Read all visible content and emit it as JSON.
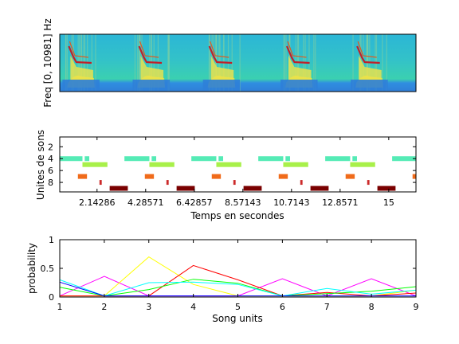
{
  "spectrogram": {
    "ylabel": "Freq [0, 10981] Hz",
    "song_bouts": [
      {
        "start": 0.2,
        "end": 1.25
      },
      {
        "start": 2.6,
        "end": 3.65
      },
      {
        "start": 5.0,
        "end": 6.05
      },
      {
        "start": 7.65,
        "end": 8.7
      },
      {
        "start": 10.05,
        "end": 11.1
      }
    ],
    "colors": {
      "background": "#2fb8d3",
      "low_band": "#2f7fd8",
      "energy": "#e8e43a",
      "harmonic": "#c0202a",
      "noise": "#7fd0a0"
    }
  },
  "units_plot": {
    "ylabel": "Unites de sons",
    "xlabel": "Temps en secondes",
    "xticks": [
      "2.14286",
      "4.28571",
      "6.42857",
      "8.57143",
      "10.7143",
      "12.8571",
      "15"
    ],
    "yticks": [
      "2",
      "4",
      "6",
      "8"
    ],
    "colors": {
      "unit4": "#55ebb6",
      "unit5": "#a8f04a",
      "unit7": "#f06b1a",
      "unit8": "#cc2a2a",
      "unit9": "#7a0000"
    }
  },
  "chart_data": {
    "type": "line",
    "xlabel": "Song units",
    "ylabel": "probability",
    "x": [
      1,
      2,
      3,
      4,
      5,
      6,
      7,
      8,
      9
    ],
    "xlim": [
      1,
      9
    ],
    "ylim": [
      0,
      1
    ],
    "xticks": [
      "1",
      "2",
      "3",
      "4",
      "5",
      "6",
      "7",
      "8",
      "9"
    ],
    "yticks": [
      "0",
      "0.5",
      "1"
    ],
    "series": [
      {
        "color": "#ff00ff",
        "values": [
          0.02,
          0.36,
          0.02,
          0.02,
          0.02,
          0.32,
          0.02,
          0.32,
          0.02
        ]
      },
      {
        "color": "#ffff00",
        "values": [
          0.02,
          0.02,
          0.7,
          0.22,
          0.02,
          0.02,
          0.02,
          0.02,
          0.12
        ]
      },
      {
        "color": "#ff0000",
        "values": [
          0.02,
          0.02,
          0.02,
          0.55,
          0.3,
          0.02,
          0.08,
          0.02,
          0.07
        ]
      },
      {
        "color": "#00ff00",
        "values": [
          0.17,
          0.02,
          0.13,
          0.31,
          0.24,
          0.02,
          0.06,
          0.1,
          0.18
        ]
      },
      {
        "color": "#00ffff",
        "values": [
          0.3,
          0.02,
          0.25,
          0.26,
          0.22,
          0.02,
          0.15,
          0.05,
          0.12
        ]
      },
      {
        "color": "#0000ff",
        "values": [
          0.26,
          0.02,
          0.02,
          0.02,
          0.02,
          0.02,
          0.02,
          0.02,
          0.02
        ]
      }
    ]
  }
}
